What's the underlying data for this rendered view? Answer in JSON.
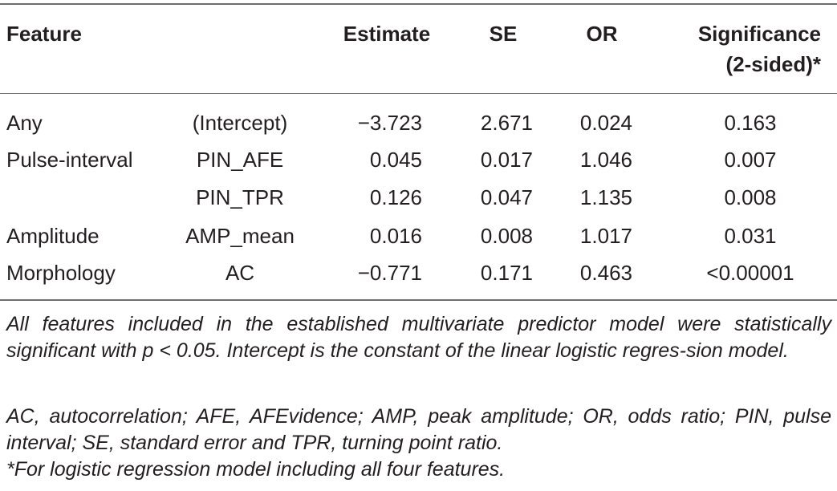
{
  "table": {
    "headers": {
      "feature": "Feature",
      "estimate": "Estimate",
      "se": "SE",
      "or": "OR",
      "significance_line1": "Significance",
      "significance_line2": "(2-sided)*"
    },
    "rows": [
      {
        "group": "Any",
        "variable": "(Intercept)",
        "estimate": "−3.723",
        "se": "2.671",
        "or": "0.024",
        "significance": "0.163"
      },
      {
        "group": "Pulse-interval",
        "variable": "PIN_AFE",
        "estimate": "0.045",
        "se": "0.017",
        "or": "1.046",
        "significance": "0.007"
      },
      {
        "group": "",
        "variable": "PIN_TPR",
        "estimate": "0.126",
        "se": "0.047",
        "or": "1.135",
        "significance": "0.008"
      },
      {
        "group": "Amplitude",
        "variable": "AMP_mean",
        "estimate": "0.016",
        "se": "0.008",
        "or": "1.017",
        "significance": "0.031"
      },
      {
        "group": "Morphology",
        "variable": "AC",
        "estimate": "−0.771",
        "se": "0.171",
        "or": "0.463",
        "significance": "<0.00001"
      }
    ]
  },
  "footnotes": {
    "note1": "All features included in the established multivariate predictor model were statistically significant with p < 0.05. Intercept is the constant of the linear logistic regres-sion model.",
    "note2": "AC, autocorrelation; AFE, AFEvidence; AMP, peak amplitude; OR, odds ratio; PIN, pulse interval; SE, standard error and TPR, turning point ratio.",
    "note3": "*For logistic regression model including all four features."
  }
}
